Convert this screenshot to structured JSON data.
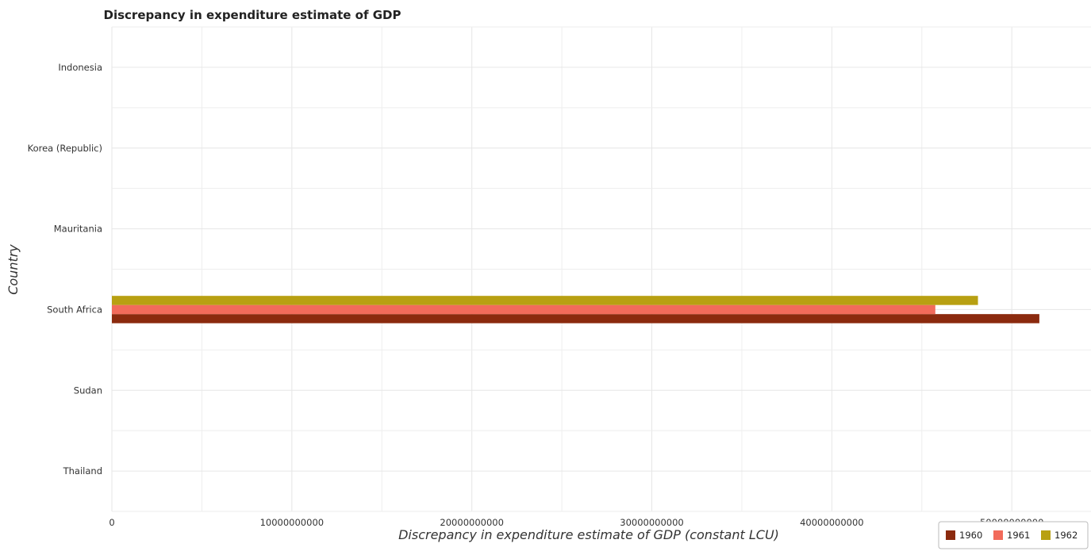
{
  "chart_data": {
    "type": "bar",
    "orientation": "horizontal",
    "title": "Discrepancy in expenditure estimate of GDP",
    "xlabel": "Discrepancy in expenditure estimate of GDP (constant LCU)",
    "ylabel": "Country",
    "categories": [
      "Indonesia",
      "Korea (Republic)",
      "Mauritania",
      "South Africa",
      "Sudan",
      "Thailand"
    ],
    "series": [
      {
        "name": "1960",
        "color": "#8B2A0E",
        "values": [
          0,
          0,
          0,
          51530000000,
          0,
          0
        ]
      },
      {
        "name": "1961",
        "color": "#F26B5B",
        "values": [
          0,
          0,
          0,
          45750000000,
          0,
          0
        ]
      },
      {
        "name": "1962",
        "color": "#B8A012",
        "values": [
          0,
          0,
          0,
          48120000000,
          0,
          0
        ]
      }
    ],
    "xlim": [
      0,
      54400000000
    ],
    "xticks": [
      0,
      10000000000,
      20000000000,
      30000000000,
      40000000000,
      50000000000
    ],
    "xtick_labels": [
      "0",
      "10000000000",
      "20000000000",
      "30000000000",
      "40000000000",
      "50000000000"
    ],
    "grid": true,
    "legend_position": "bottom-right"
  }
}
